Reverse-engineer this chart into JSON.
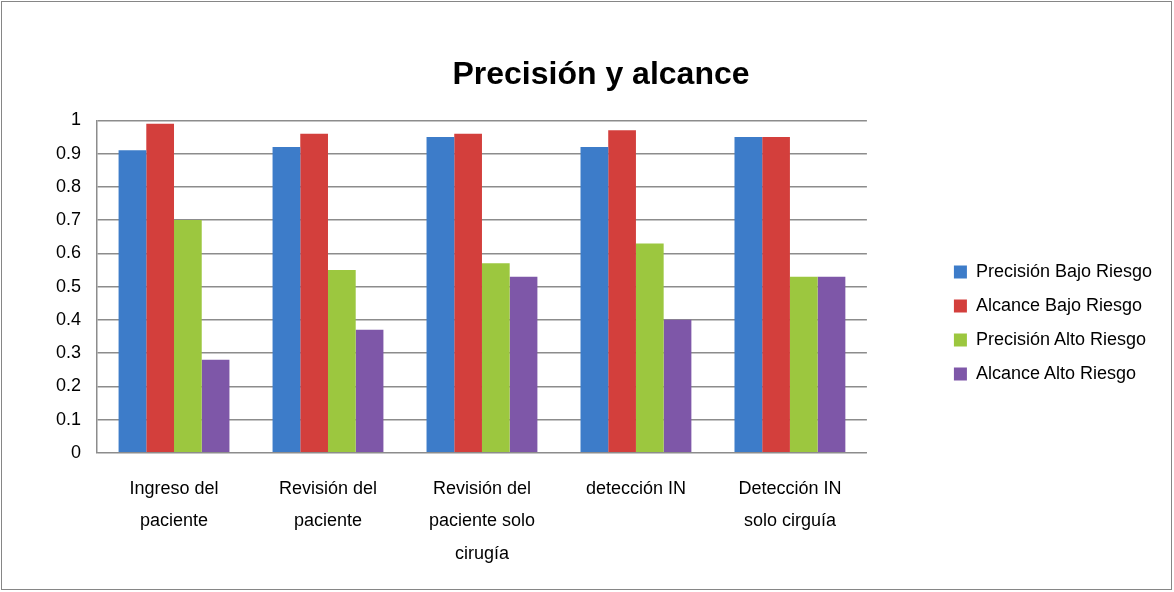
{
  "chart_data": {
    "type": "bar",
    "title": "Precisión y alcance",
    "categories": [
      "Ingreso del paciente",
      "Revisión del paciente",
      "Revisión del paciente solo cirugía",
      "detección IN",
      "Detección IN solo cirguía"
    ],
    "series": [
      {
        "name": "Precisión Bajo Riesgo",
        "color": "#3d7cc9",
        "values": [
          0.91,
          0.92,
          0.95,
          0.92,
          0.95
        ]
      },
      {
        "name": "Alcance Bajo Riesgo",
        "color": "#d33f3c",
        "values": [
          0.99,
          0.96,
          0.96,
          0.97,
          0.95
        ]
      },
      {
        "name": "Precisión Alto Riesgo",
        "color": "#9cc73f",
        "values": [
          0.7,
          0.55,
          0.57,
          0.63,
          0.53
        ]
      },
      {
        "name": "Alcance Alto Riesgo",
        "color": "#7e57a8",
        "values": [
          0.28,
          0.37,
          0.53,
          0.4,
          0.53
        ]
      }
    ],
    "ylim": [
      0,
      1
    ],
    "yticks": [
      0,
      0.1,
      0.2,
      0.3,
      0.4,
      0.5,
      0.6,
      0.7,
      0.8,
      0.9,
      1
    ],
    "grid": "y",
    "legend": "right"
  }
}
